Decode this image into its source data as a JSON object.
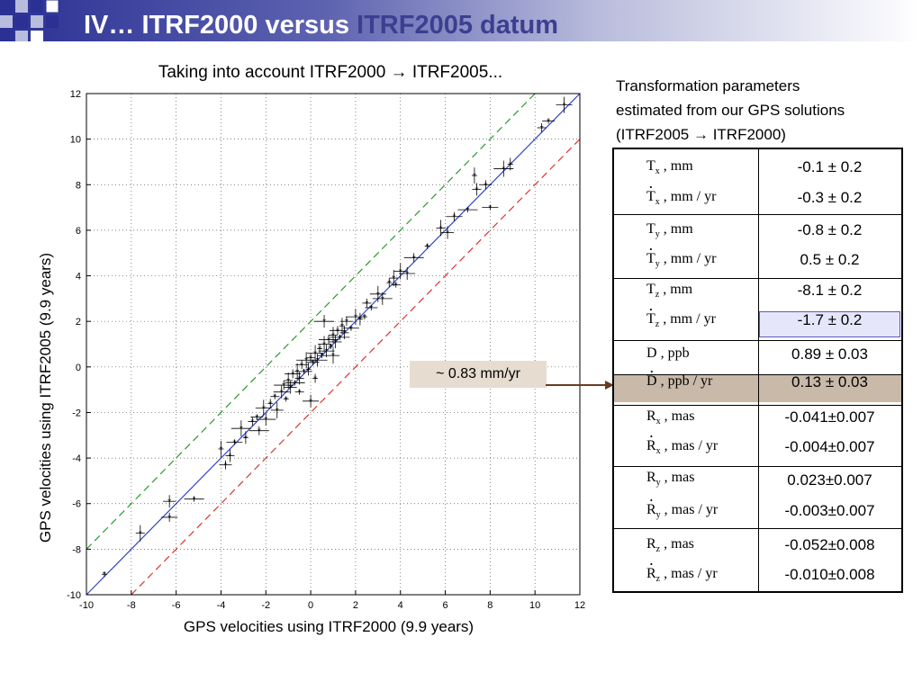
{
  "header": {
    "title_part1": "IV… ITRF2000 versus ",
    "title_part2": "ITRF2005 datum",
    "colors": {
      "bar_dark": "#2b3194",
      "title_light": "#ffffff",
      "title_dark": "#3c3f90"
    }
  },
  "chart_data": {
    "type": "scatter",
    "title": "Taking into account ITRF2000 → ITRF2005...",
    "xlabel": "GPS velocities using ITRF2000 (9.9 years)",
    "ylabel": "GPS velocities using ITRF2005 (9.9 years)",
    "xlim": [
      -10,
      12
    ],
    "ylim": [
      -10,
      12
    ],
    "xticks": [
      -10,
      -8,
      -6,
      -4,
      -2,
      0,
      2,
      4,
      6,
      8,
      10,
      12
    ],
    "yticks": [
      -10,
      -8,
      -6,
      -4,
      -2,
      0,
      2,
      4,
      6,
      8,
      10,
      12
    ],
    "grid": true,
    "lines": [
      {
        "style": "solid",
        "color": "#3344cc",
        "slope": 1,
        "intercept": 0
      },
      {
        "style": "dashed",
        "color": "#2a9a2a",
        "slope": 1,
        "intercept": 2
      },
      {
        "style": "dashed",
        "color": "#dd3333",
        "slope": 1,
        "intercept": -2
      }
    ],
    "points": [
      [
        -9.2,
        -9.1
      ],
      [
        -7.6,
        -7.3
      ],
      [
        -6.3,
        -5.9
      ],
      [
        -6.3,
        -6.6
      ],
      [
        -5.2,
        -5.8
      ],
      [
        -4.0,
        -3.6
      ],
      [
        -3.6,
        -3.9
      ],
      [
        -3.8,
        -4.3
      ],
      [
        -3.4,
        -3.3
      ],
      [
        -3.1,
        -2.7
      ],
      [
        -2.9,
        -3.1
      ],
      [
        -2.6,
        -2.4
      ],
      [
        -2.4,
        -2.2
      ],
      [
        -2.1,
        -1.8
      ],
      [
        -2.0,
        -2.3
      ],
      [
        -1.8,
        -1.6
      ],
      [
        -1.6,
        -1.3
      ],
      [
        -1.5,
        -1.9
      ],
      [
        -1.3,
        -1.1
      ],
      [
        -1.2,
        -0.8
      ],
      [
        -1.1,
        -1.4
      ],
      [
        -1.0,
        -0.6
      ],
      [
        -0.9,
        -0.9
      ],
      [
        -0.8,
        -0.3
      ],
      [
        -0.7,
        -0.7
      ],
      [
        -0.6,
        -0.2
      ],
      [
        -0.5,
        -0.5
      ],
      [
        -0.4,
        0.1
      ],
      [
        -0.3,
        -0.2
      ],
      [
        -0.2,
        0.3
      ],
      [
        -0.1,
        -0.1
      ],
      [
        0.0,
        0.4
      ],
      [
        0.1,
        0.2
      ],
      [
        0.2,
        0.6
      ],
      [
        0.3,
        0.3
      ],
      [
        0.4,
        0.8
      ],
      [
        0.5,
        0.5
      ],
      [
        0.6,
        1.0
      ],
      [
        0.7,
        0.7
      ],
      [
        0.8,
        1.2
      ],
      [
        0.9,
        0.9
      ],
      [
        1.0,
        1.4
      ],
      [
        1.1,
        1.1
      ],
      [
        1.2,
        1.6
      ],
      [
        1.3,
        1.3
      ],
      [
        1.4,
        1.8
      ],
      [
        1.5,
        1.5
      ],
      [
        1.6,
        2.0
      ],
      [
        1.8,
        1.7
      ],
      [
        2.0,
        2.2
      ],
      [
        2.2,
        2.1
      ],
      [
        2.5,
        2.8
      ],
      [
        2.7,
        2.6
      ],
      [
        3.0,
        3.2
      ],
      [
        3.2,
        3.0
      ],
      [
        3.5,
        3.7
      ],
      [
        3.8,
        3.6
      ],
      [
        4.0,
        4.2
      ],
      [
        4.3,
        4.1
      ],
      [
        4.6,
        4.8
      ],
      [
        5.2,
        5.3
      ],
      [
        5.8,
        6.1
      ],
      [
        6.1,
        5.9
      ],
      [
        6.4,
        6.6
      ],
      [
        7.0,
        6.9
      ],
      [
        7.3,
        8.4
      ],
      [
        7.4,
        7.8
      ],
      [
        7.8,
        8.0
      ],
      [
        8.0,
        7.0
      ],
      [
        8.6,
        8.7
      ],
      [
        8.9,
        8.9
      ],
      [
        10.3,
        10.5
      ],
      [
        10.6,
        10.8
      ],
      [
        11.3,
        11.5
      ],
      [
        0.6,
        2.0
      ],
      [
        0.2,
        -0.5
      ],
      [
        -0.5,
        -1.1
      ],
      [
        1.0,
        0.5
      ],
      [
        0.0,
        -1.5
      ],
      [
        -2.3,
        -2.8
      ],
      [
        2.4,
        2.2
      ],
      [
        3.7,
        3.9
      ]
    ]
  },
  "callout": {
    "text": "~ 0.83 mm/yr",
    "color": "#e6dccf",
    "arrow_color": "#6b3a1f"
  },
  "params": {
    "heading_line1": "Transformation parameters",
    "heading_line2": "estimated from our GPS solutions",
    "heading_line3": "(ITRF2005 → ITRF2000)",
    "highlight_blue": "#e6e6fb",
    "highlight_brown": "#c9b9a9",
    "rows": [
      {
        "sym": "T",
        "sub": "x",
        "dot": false,
        "unit": ", mm",
        "value": "-0.1 ± 0.2"
      },
      {
        "sym": "T",
        "sub": "x",
        "dot": true,
        "unit": ", mm / yr",
        "value": "-0.3 ± 0.2"
      },
      {
        "sym": "T",
        "sub": "y",
        "dot": false,
        "unit": ", mm",
        "value": "-0.8 ± 0.2"
      },
      {
        "sym": "T",
        "sub": "y",
        "dot": true,
        "unit": ", mm / yr",
        "value": "0.5 ± 0.2"
      },
      {
        "sym": "T",
        "sub": "z",
        "dot": false,
        "unit": ", mm",
        "value": "-8.1 ± 0.2"
      },
      {
        "sym": "T",
        "sub": "z",
        "dot": true,
        "unit": ", mm / yr",
        "value": "-1.7 ± 0.2"
      },
      {
        "sym": "D",
        "sub": "",
        "dot": false,
        "unit": " , ppb",
        "value": "0.89 ± 0.03"
      },
      {
        "sym": "D",
        "sub": "",
        "dot": true,
        "unit": " , ppb / yr",
        "value": "0.13 ± 0.03"
      },
      {
        "sym": "R",
        "sub": "x",
        "dot": false,
        "unit": " , mas",
        "value": "-0.041±0.007"
      },
      {
        "sym": "R",
        "sub": "x",
        "dot": true,
        "unit": " , mas / yr",
        "value": "-0.004±0.007"
      },
      {
        "sym": "R",
        "sub": "y",
        "dot": false,
        "unit": " , mas",
        "value": "0.023±0.007"
      },
      {
        "sym": "R",
        "sub": "y",
        "dot": true,
        "unit": " , mas / yr",
        "value": "-0.003±0.007"
      },
      {
        "sym": "R",
        "sub": "z",
        "dot": false,
        "unit": " , mas",
        "value": "-0.052±0.008"
      },
      {
        "sym": "R",
        "sub": "z",
        "dot": true,
        "unit": " , mas / yr",
        "value": "-0.010±0.008"
      }
    ]
  }
}
